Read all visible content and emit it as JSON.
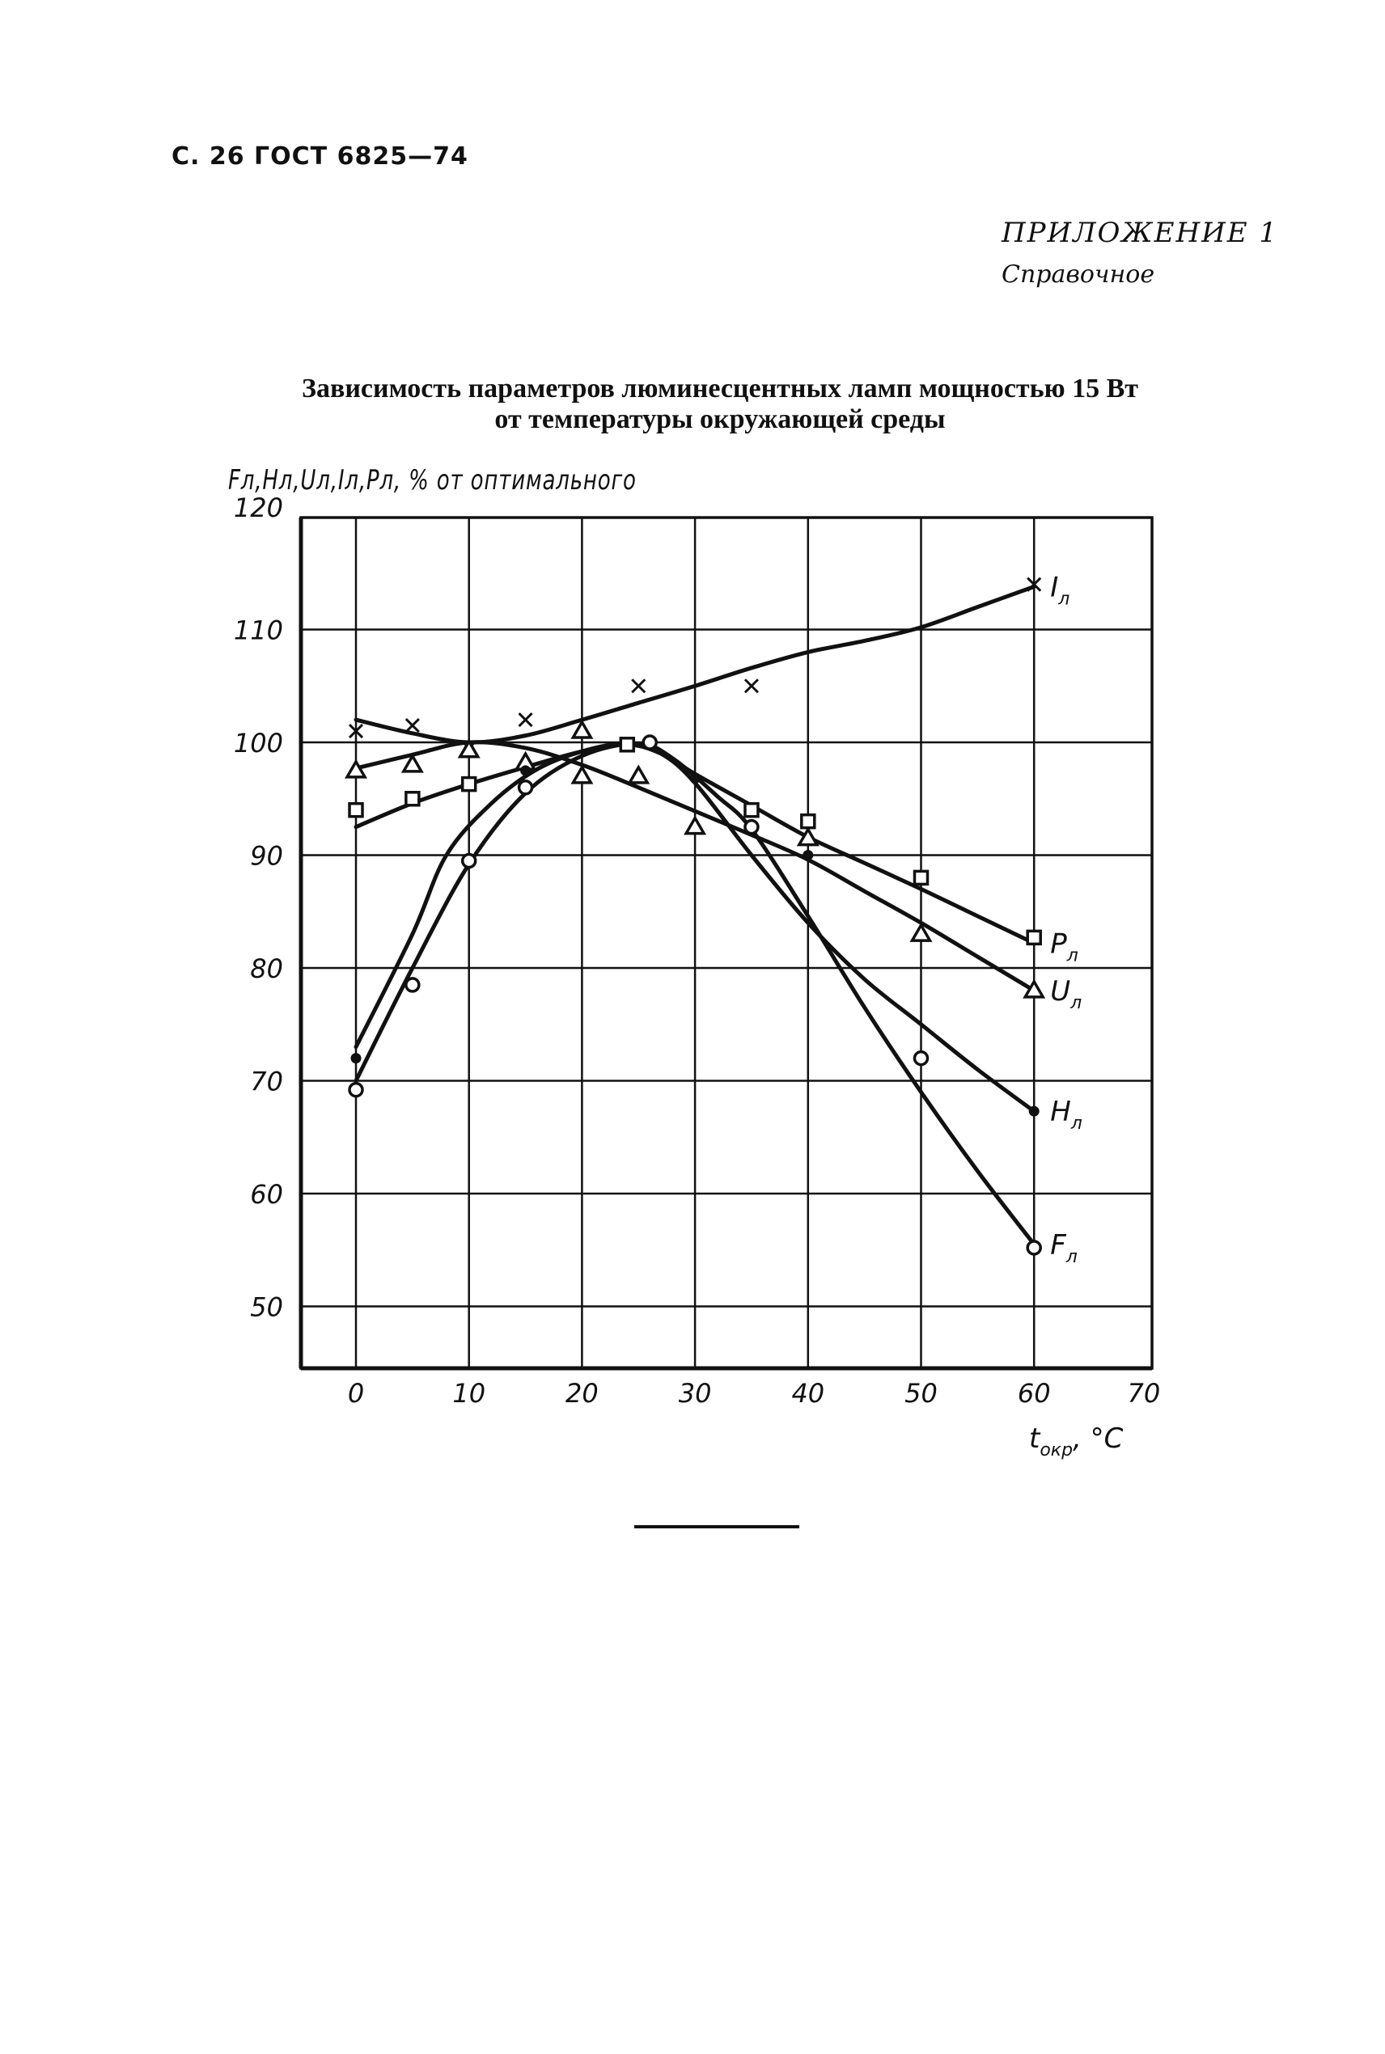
{
  "page": {
    "header": "С. 26 ГОСТ 6825—74",
    "appendix_title": "ПРИЛОЖЕНИЕ 1",
    "appendix_note": "Справочное"
  },
  "chart_data": {
    "type": "line",
    "title": "Зависимость параметров люминесцентных ламп мощностью 15 Вт от температуры окружающей среды",
    "title_lines": [
      "Зависимость параметров люминесцентных ламп мощностью 15 Вт",
      "от температуры окружающей среды"
    ],
    "ylabel": "Fл,Hл,Uл,Iл,Pл, % от оптимального",
    "xlabel": "tокр, °C",
    "xlim": [
      -5,
      70
    ],
    "ylim": [
      45,
      120
    ],
    "xticks": [
      0,
      10,
      20,
      30,
      40,
      50,
      60,
      70
    ],
    "yticks": [
      50,
      60,
      70,
      80,
      90,
      100,
      110,
      120
    ],
    "grid": true,
    "legend_position": "inline labels at right end of curves",
    "series": [
      {
        "name": "Iл",
        "label_main": "I",
        "label_sub": "л",
        "marker": "x",
        "points": [
          [
            0,
            101
          ],
          [
            5,
            101.5
          ],
          [
            10,
            99.5
          ],
          [
            15,
            102
          ],
          [
            25,
            105
          ],
          [
            35,
            105
          ],
          [
            60,
            114
          ]
        ],
        "curve": [
          [
            0,
            102
          ],
          [
            5,
            100.8
          ],
          [
            10,
            100
          ],
          [
            15,
            100.6
          ],
          [
            20,
            102
          ],
          [
            25,
            103.5
          ],
          [
            30,
            105
          ],
          [
            35,
            106.6
          ],
          [
            40,
            108
          ],
          [
            45,
            109
          ],
          [
            50,
            110.2
          ],
          [
            55,
            112
          ],
          [
            60,
            113.8
          ]
        ]
      },
      {
        "name": "Pл",
        "label_main": "P",
        "label_sub": "л",
        "marker": "square",
        "points": [
          [
            0,
            94
          ],
          [
            5,
            95
          ],
          [
            10,
            96.3
          ],
          [
            24,
            99.8
          ],
          [
            35,
            94
          ],
          [
            40,
            93
          ],
          [
            50,
            88
          ],
          [
            60,
            82.7
          ]
        ],
        "curve": [
          [
            0,
            92.5
          ],
          [
            5,
            94.6
          ],
          [
            10,
            96.3
          ],
          [
            15,
            97.8
          ],
          [
            20,
            99.2
          ],
          [
            24,
            99.8
          ],
          [
            27,
            99
          ],
          [
            30,
            97.2
          ],
          [
            35,
            94.4
          ],
          [
            40,
            91.6
          ],
          [
            45,
            89.3
          ],
          [
            50,
            87
          ],
          [
            55,
            84.6
          ],
          [
            60,
            82.2
          ]
        ]
      },
      {
        "name": "Uл",
        "label_main": "U",
        "label_sub": "л",
        "marker": "triangle",
        "points": [
          [
            0,
            97.5
          ],
          [
            5,
            98
          ],
          [
            10,
            99.3
          ],
          [
            15,
            98.2
          ],
          [
            20,
            101
          ],
          [
            20,
            97
          ],
          [
            25,
            97
          ],
          [
            30,
            92.5
          ],
          [
            40,
            91.5
          ],
          [
            50,
            83
          ],
          [
            60,
            78
          ]
        ],
        "curve": [
          [
            0,
            97.7
          ],
          [
            5,
            98.9
          ],
          [
            10,
            100
          ],
          [
            15,
            99.5
          ],
          [
            20,
            98
          ],
          [
            25,
            96
          ],
          [
            30,
            93.9
          ],
          [
            35,
            91.8
          ],
          [
            40,
            89.6
          ],
          [
            45,
            86.8
          ],
          [
            50,
            84
          ],
          [
            55,
            81
          ],
          [
            60,
            78
          ]
        ]
      },
      {
        "name": "Hл",
        "label_main": "H",
        "label_sub": "л",
        "marker": "filled-circle",
        "points": [
          [
            0,
            72
          ],
          [
            15,
            97.5
          ],
          [
            30,
            96.8
          ],
          [
            40,
            90
          ],
          [
            60,
            67.3
          ]
        ],
        "curve": [
          [
            0,
            73
          ],
          [
            5,
            83
          ],
          [
            8,
            90
          ],
          [
            12,
            94.6
          ],
          [
            16,
            97.6
          ],
          [
            20,
            99.2
          ],
          [
            24,
            99.9
          ],
          [
            27,
            99
          ],
          [
            30,
            96.4
          ],
          [
            35,
            90
          ],
          [
            40,
            84
          ],
          [
            45,
            79
          ],
          [
            50,
            75
          ],
          [
            55,
            71
          ],
          [
            60,
            67.3
          ]
        ]
      },
      {
        "name": "Fл",
        "label_main": "F",
        "label_sub": "л",
        "marker": "circle",
        "points": [
          [
            0,
            69.2
          ],
          [
            5,
            78.5
          ],
          [
            10,
            89.5
          ],
          [
            15,
            96
          ],
          [
            26,
            100
          ],
          [
            35,
            92.5
          ],
          [
            50,
            72
          ],
          [
            60,
            55.2
          ]
        ],
        "curve": [
          [
            0,
            70
          ],
          [
            5,
            80
          ],
          [
            10,
            89.2
          ],
          [
            15,
            95.5
          ],
          [
            20,
            98.8
          ],
          [
            25,
            99.9
          ],
          [
            28,
            98.6
          ],
          [
            32,
            95.2
          ],
          [
            35,
            92.3
          ],
          [
            40,
            84.6
          ],
          [
            45,
            76.5
          ],
          [
            50,
            69
          ],
          [
            55,
            62
          ],
          [
            60,
            55.5
          ]
        ]
      }
    ]
  }
}
